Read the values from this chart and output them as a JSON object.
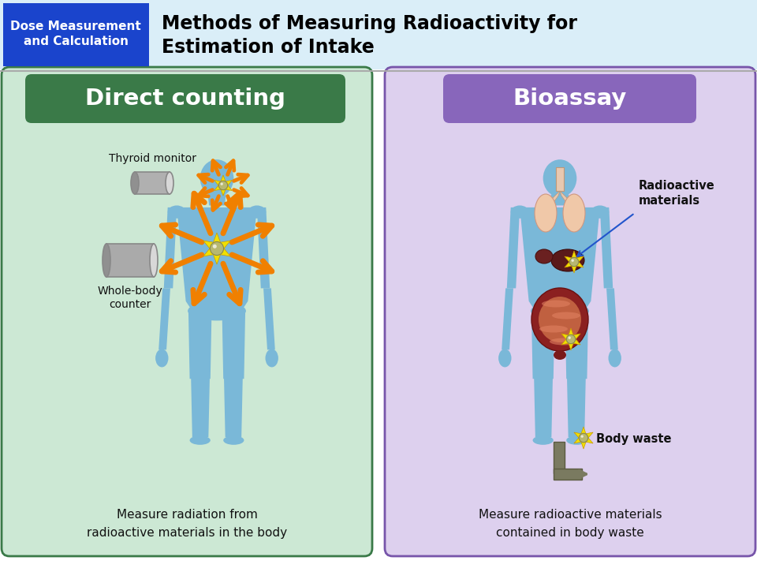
{
  "title_line1": "Methods of Measuring Radioactivity for",
  "title_line2": "Estimation of Intake",
  "title_tag": "Dose Measurement\nand Calculation",
  "title_tag_color": "#1a44cc",
  "title_bg_color": "#daeef8",
  "left_panel_bg": "#cce8d4",
  "left_panel_border": "#3a7a48",
  "left_header": "Direct counting",
  "left_header_bg": "#3a7a48",
  "right_panel_bg": "#ddd0ee",
  "right_panel_border": "#7755aa",
  "right_header": "Bioassay",
  "right_header_bg": "#8866bb",
  "body_color": "#7ab8d8",
  "arrow_color": "#f08000",
  "star_outer": "#f0e000",
  "left_desc": "Measure radiation from\nradioactive materials in the body",
  "right_label1": "Radioactive\nmaterials",
  "right_label2": "Body waste",
  "right_desc": "Measure radioactive materials\ncontained in body waste",
  "thyroid_label": "Thyroid monitor",
  "wholebody_label": "Whole-body\ncounter"
}
